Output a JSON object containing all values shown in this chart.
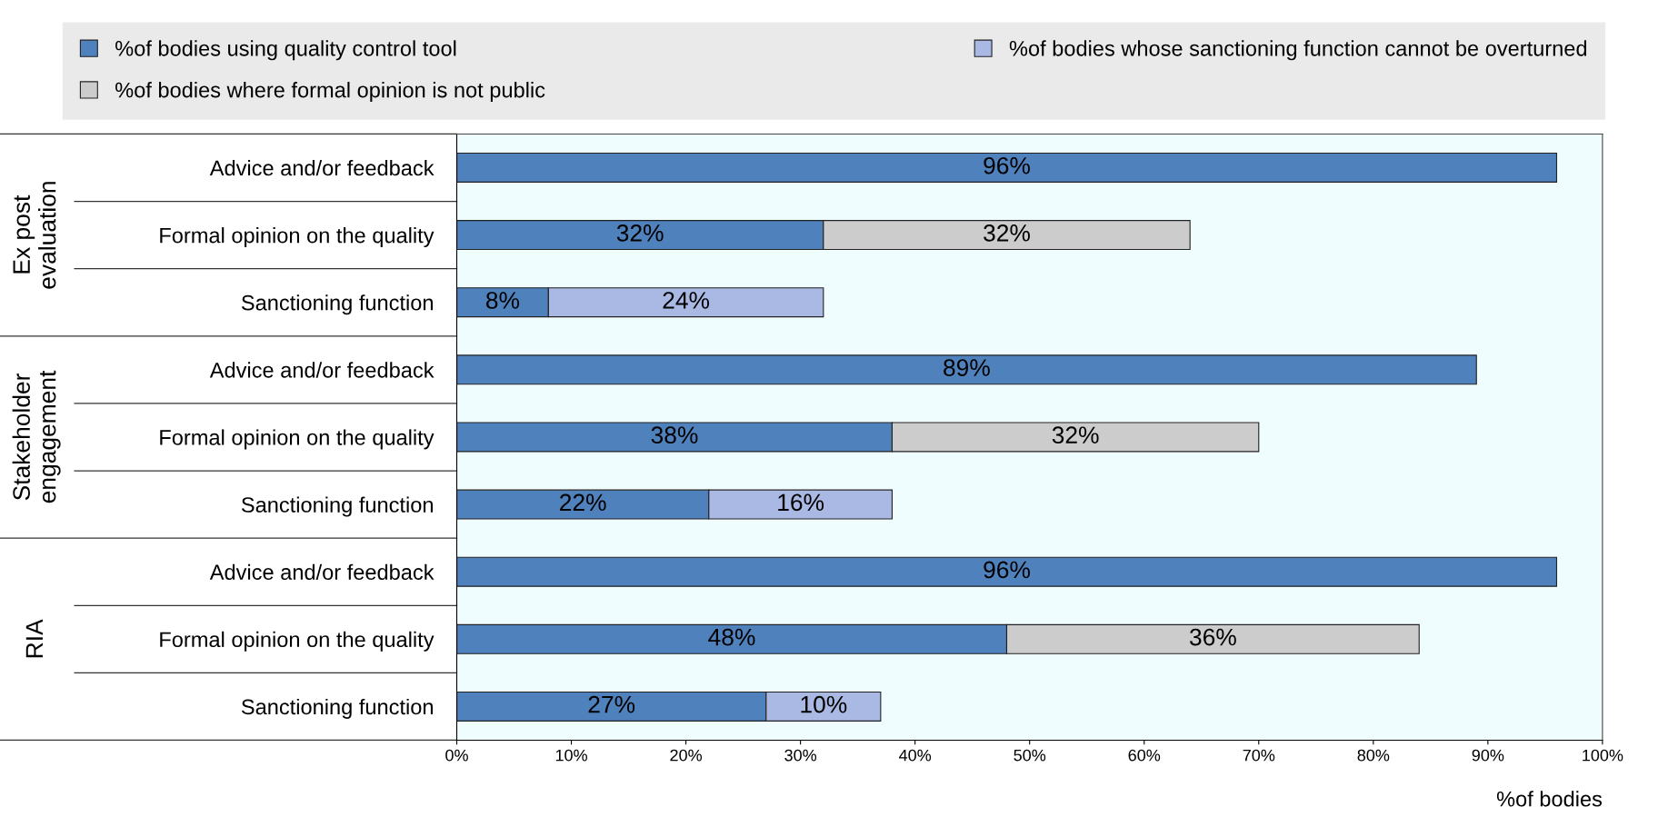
{
  "chart_data": {
    "type": "bar",
    "orientation": "horizontal",
    "stacked": true,
    "categories": [
      "Advice and/or feedback",
      "Formal opinion on the quality",
      "Sanctioning function",
      "Advice and/or feedback",
      "Formal opinion on the quality",
      "Sanctioning function",
      "Advice and/or feedback",
      "Formal opinion on the quality",
      "Sanctioning function"
    ],
    "series": [
      {
        "name": "%of bodies using quality control tool",
        "color": "#4f81bd",
        "values": [
          96,
          32,
          8,
          89,
          38,
          22,
          96,
          48,
          27
        ],
        "value_labels": [
          "96%",
          "32%",
          "8%",
          "89%",
          "38%",
          "22%",
          "96%",
          "48%",
          "27%"
        ]
      },
      {
        "name": "%of bodies where formal opinion is not public",
        "color": "#cccccc",
        "values": [
          null,
          32,
          null,
          null,
          32,
          null,
          null,
          36,
          null
        ],
        "value_labels": [
          null,
          "32%",
          null,
          null,
          "32%",
          null,
          null,
          "36%",
          null
        ]
      },
      {
        "name": "%of bodies whose sanctioning function cannot be overturned",
        "color": "#a9b9e3",
        "values": [
          null,
          null,
          24,
          null,
          null,
          16,
          null,
          null,
          10
        ],
        "value_labels": [
          null,
          null,
          "24%",
          null,
          null,
          "16%",
          null,
          null,
          "10%"
        ]
      }
    ],
    "xlabel": "%of bodies",
    "xlim": [
      0,
      100
    ],
    "xticks": [
      {
        "value": 0,
        "label": "0%"
      },
      {
        "value": 10,
        "label": "10%"
      },
      {
        "value": 20,
        "label": "20%"
      },
      {
        "value": 30,
        "label": "30%"
      },
      {
        "value": 40,
        "label": "40%"
      },
      {
        "value": 50,
        "label": "50%"
      },
      {
        "value": 60,
        "label": "60%"
      },
      {
        "value": 70,
        "label": "70%"
      },
      {
        "value": 80,
        "label": "80%"
      },
      {
        "value": 90,
        "label": "90%"
      },
      {
        "value": 100,
        "label": "100%"
      }
    ],
    "annotations": [
      "Ex post\nevaluation",
      "Stakeholder\nengagement",
      "RIA"
    ],
    "legend": "top",
    "grid": false
  }
}
